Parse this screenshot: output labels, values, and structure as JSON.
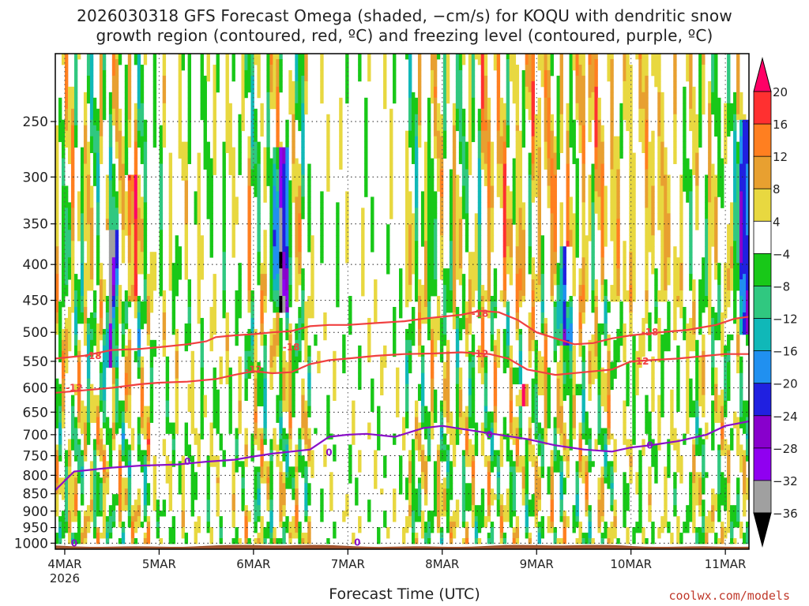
{
  "title_line1": "2026030318 GFS Forecast Omega (shaded, −cm/s) for KOQU with dendritic snow",
  "title_line2": "growth region (contoured, red, ºC) and freezing level (contoured, purple, ºC)",
  "credit": "coolwx.com/models",
  "chart_data": {
    "type": "heatmap",
    "title": "2026030318 GFS Forecast Omega (shaded, −cm/s) for KOQU with dendritic snow growth region (contoured, red, ºC) and freezing level (contoured, purple, ºC)",
    "xlabel": "Forecast Time (UTC)",
    "ylabel": "",
    "x_ticks": [
      {
        "label": "4MAR",
        "day": 0
      },
      {
        "label": "5MAR",
        "day": 1
      },
      {
        "label": "6MAR",
        "day": 2
      },
      {
        "label": "7MAR",
        "day": 3
      },
      {
        "label": "8MAR",
        "day": 4
      },
      {
        "label": "9MAR",
        "day": 5
      },
      {
        "label": "10MAR",
        "day": 6
      },
      {
        "label": "11MAR",
        "day": 7
      }
    ],
    "x_tick_sublabel": "2026",
    "xlim_days": [
      -0.1,
      7.25
    ],
    "y_ticks": [
      250,
      300,
      350,
      400,
      450,
      500,
      550,
      600,
      650,
      700,
      750,
      800,
      850,
      900,
      950,
      1000
    ],
    "ylim_hpa": [
      200,
      1020
    ],
    "y_scale": "log-pressure (inverted)",
    "grid": true,
    "colorbar": {
      "labels": [
        "20",
        "16",
        "12",
        "8",
        "4",
        "−4",
        "−8",
        "−12",
        "−16",
        "−20",
        "−24",
        "−28",
        "−32",
        "−36"
      ],
      "levels": [
        20,
        16,
        12,
        8,
        4,
        -4,
        -8,
        -12,
        -16,
        -20,
        -24,
        -28,
        -32,
        -36
      ],
      "colors": [
        "#ff0066",
        "#ff3030",
        "#ff7f20",
        "#e8a030",
        "#e8d840",
        "#ffffff",
        "#18c818",
        "#30c880",
        "#10b8b8",
        "#2090f0",
        "#2020e0",
        "#8800cc",
        "#9000f0",
        "#a0a0a0",
        "#000000"
      ]
    },
    "contours": [
      {
        "name": "-18",
        "color": "#f04040",
        "points": [
          [
            -0.1,
            545
          ],
          [
            0.2,
            540
          ],
          [
            0.5,
            530
          ],
          [
            0.8,
            528
          ],
          [
            1.0,
            525
          ],
          [
            1.3,
            520
          ],
          [
            1.5,
            515
          ],
          [
            1.6,
            508
          ],
          [
            1.8,
            505
          ],
          [
            2.0,
            503
          ],
          [
            2.2,
            500
          ],
          [
            2.4,
            498
          ],
          [
            2.6,
            490
          ],
          [
            2.8,
            488
          ],
          [
            3.0,
            488
          ],
          [
            3.3,
            485
          ],
          [
            3.6,
            482
          ],
          [
            3.8,
            478
          ],
          [
            4.0,
            475
          ],
          [
            4.2,
            472
          ],
          [
            4.4,
            466
          ],
          [
            4.6,
            468
          ],
          [
            4.8,
            480
          ],
          [
            5.0,
            500
          ],
          [
            5.2,
            510
          ],
          [
            5.4,
            520
          ],
          [
            5.6,
            518
          ],
          [
            5.8,
            510
          ],
          [
            6.0,
            505
          ],
          [
            6.3,
            500
          ],
          [
            6.6,
            496
          ],
          [
            6.9,
            488
          ],
          [
            7.1,
            478
          ],
          [
            7.25,
            475
          ]
        ],
        "labels": [
          [
            0.3,
            540
          ],
          [
            2.4,
            525
          ],
          [
            4.4,
            470
          ],
          [
            6.2,
            500
          ]
        ]
      },
      {
        "name": "-12",
        "color": "#f04040",
        "points": [
          [
            -0.1,
            610
          ],
          [
            0.2,
            605
          ],
          [
            0.5,
            600
          ],
          [
            0.8,
            593
          ],
          [
            1.0,
            590
          ],
          [
            1.3,
            588
          ],
          [
            1.6,
            583
          ],
          [
            1.8,
            575
          ],
          [
            2.0,
            568
          ],
          [
            2.2,
            572
          ],
          [
            2.4,
            570
          ],
          [
            2.6,
            555
          ],
          [
            2.8,
            548
          ],
          [
            3.0,
            545
          ],
          [
            3.3,
            540
          ],
          [
            3.6,
            537
          ],
          [
            3.9,
            536
          ],
          [
            4.2,
            534
          ],
          [
            4.5,
            537
          ],
          [
            4.7,
            545
          ],
          [
            4.9,
            565
          ],
          [
            5.2,
            575
          ],
          [
            5.5,
            570
          ],
          [
            5.8,
            565
          ],
          [
            6.0,
            550
          ],
          [
            6.2,
            548
          ],
          [
            6.5,
            545
          ],
          [
            6.8,
            540
          ],
          [
            7.0,
            537
          ],
          [
            7.25,
            537
          ]
        ],
        "labels": [
          [
            0.1,
            600
          ],
          [
            2.0,
            565
          ],
          [
            4.4,
            537
          ],
          [
            6.1,
            550
          ]
        ]
      },
      {
        "name": "0",
        "color": "#8a10c8",
        "points": [
          [
            -0.1,
            840
          ],
          [
            0.1,
            790
          ],
          [
            0.3,
            785
          ],
          [
            0.5,
            780
          ],
          [
            0.8,
            775
          ],
          [
            1.2,
            772
          ],
          [
            1.5,
            765
          ],
          [
            1.8,
            760
          ],
          [
            2.0,
            752
          ],
          [
            2.2,
            745
          ],
          [
            2.4,
            740
          ],
          [
            2.6,
            735
          ],
          [
            2.8,
            705
          ],
          [
            3.0,
            700
          ],
          [
            3.2,
            698
          ],
          [
            3.5,
            705
          ],
          [
            3.8,
            685
          ],
          [
            4.0,
            680
          ],
          [
            4.3,
            690
          ],
          [
            4.6,
            700
          ],
          [
            4.9,
            710
          ],
          [
            5.2,
            725
          ],
          [
            5.5,
            735
          ],
          [
            5.8,
            740
          ],
          [
            6.0,
            730
          ],
          [
            6.2,
            725
          ],
          [
            6.5,
            715
          ],
          [
            6.8,
            700
          ],
          [
            7.0,
            680
          ],
          [
            7.25,
            670
          ]
        ],
        "labels": [
          [
            1.3,
            765
          ],
          [
            2.8,
            742
          ],
          [
            4.5,
            700
          ],
          [
            6.2,
            725
          ],
          [
            0.1,
            1000
          ],
          [
            3.1,
            998
          ]
        ]
      }
    ],
    "omega_features": [
      {
        "name": "ascent core 6MAR",
        "day": 2.3,
        "p_top": 270,
        "p_bottom": 470,
        "value": -36
      },
      {
        "name": "ascent 4MAR",
        "day": 0.5,
        "p_top": 360,
        "p_bottom": 560,
        "value": -28
      },
      {
        "name": "ascent 9MAR",
        "day": 5.3,
        "p_top": 380,
        "p_bottom": 520,
        "value": -24
      },
      {
        "name": "ascent 11MAR",
        "day": 7.2,
        "p_top": 250,
        "p_bottom": 500,
        "value": -28
      },
      {
        "name": "descent 9MAR",
        "day": 4.85,
        "p_top": 595,
        "p_bottom": 640,
        "value": 20
      },
      {
        "name": "descent 4MAR",
        "day": 0.7,
        "p_top": 300,
        "p_bottom": 450,
        "value": 16
      }
    ]
  }
}
